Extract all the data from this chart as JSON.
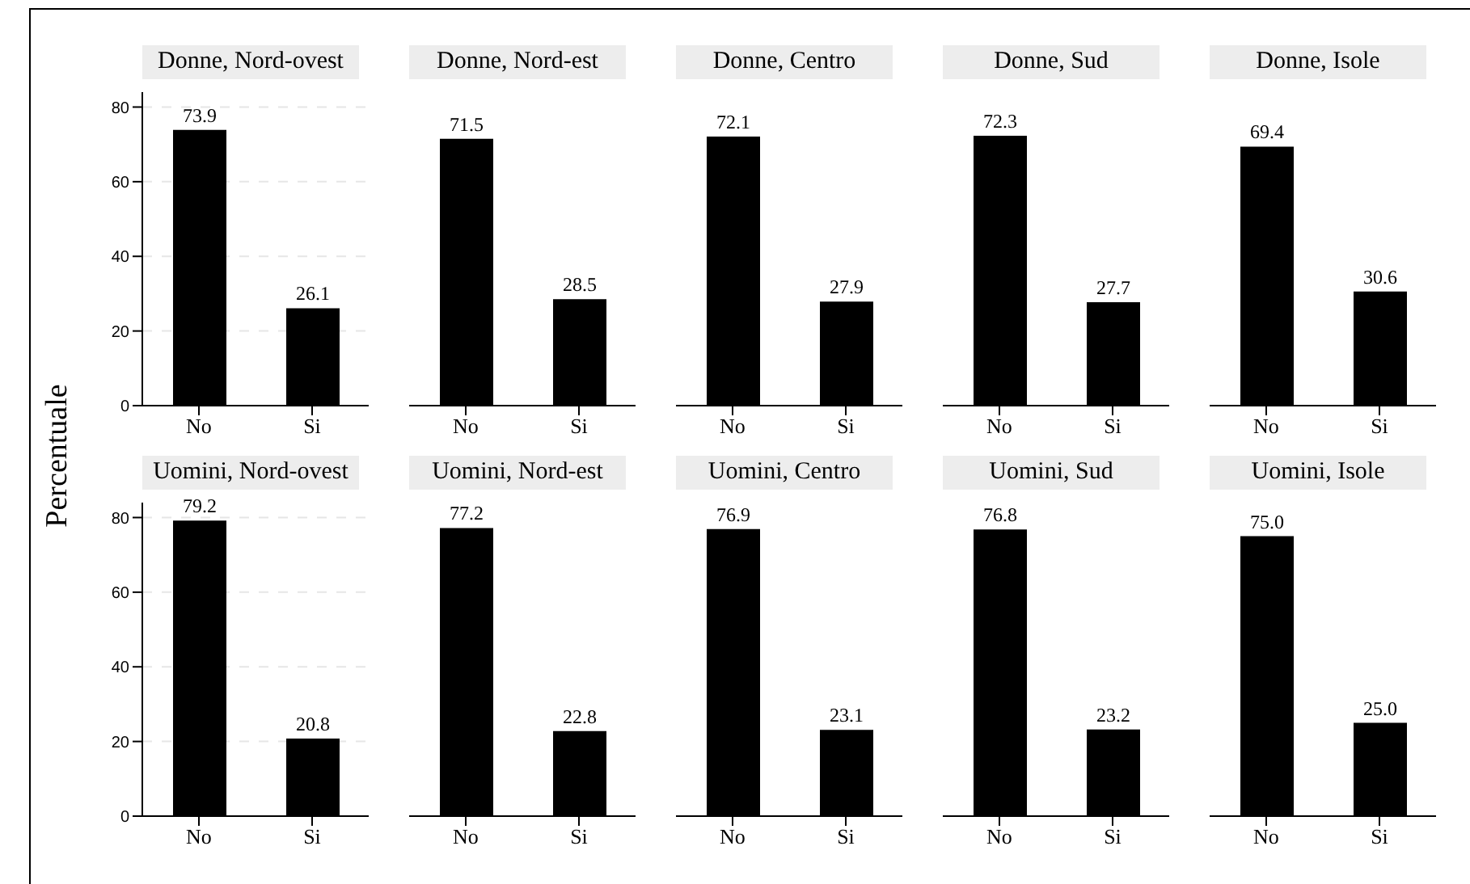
{
  "chart_data": [
    {
      "type": "bar",
      "title": "Donne, Nord-ovest",
      "ylabel": "Percentuale",
      "categories": [
        "No",
        "Si"
      ],
      "values": [
        73.9,
        26.1
      ],
      "color": "#000000",
      "value_labels": [
        "73.9",
        "26.1"
      ],
      "ylim": [
        0,
        84
      ],
      "yticks": [
        0,
        20,
        40,
        60,
        80
      ],
      "grid": "y"
    },
    {
      "type": "bar",
      "title": "Donne, Nord-est",
      "categories": [
        "No",
        "Si"
      ],
      "values": [
        71.5,
        28.5
      ],
      "color": "#000000",
      "value_labels": [
        "71.5",
        "28.5"
      ],
      "grid": "y",
      "tick_labels": "x"
    },
    {
      "type": "bar",
      "title": "Donne, Centro",
      "categories": [
        "No",
        "Si"
      ],
      "values": [
        72.1,
        27.9
      ],
      "color": "#000000",
      "value_labels": [
        "72.1",
        "27.9"
      ],
      "grid": "y",
      "tick_labels": "x"
    },
    {
      "type": "bar",
      "title": "Donne, Sud",
      "categories": [
        "No",
        "Si"
      ],
      "values": [
        72.3,
        27.7
      ],
      "color": "#000000",
      "value_labels": [
        "72.3",
        "27.7"
      ],
      "grid": "y",
      "tick_labels": "x"
    },
    {
      "type": "bar",
      "title": "Donne, Isole",
      "categories": [
        "No",
        "Si"
      ],
      "values": [
        69.4,
        30.6
      ],
      "color": "#000000",
      "value_labels": [
        "69.4",
        "30.6"
      ],
      "grid": "y",
      "tick_labels": "x"
    },
    {
      "type": "bar",
      "title": "Uomini, Nord-ovest",
      "categories": [
        "No",
        "Si"
      ],
      "values": [
        79.2,
        20.8
      ],
      "color": "#000000",
      "value_labels": [
        "79.2",
        "20.8"
      ],
      "ylim": [
        0,
        84
      ],
      "yticks": [
        0,
        20,
        40,
        60,
        80
      ],
      "grid": "y"
    },
    {
      "type": "bar",
      "title": "Uomini, Nord-est",
      "categories": [
        "No",
        "Si"
      ],
      "values": [
        77.2,
        22.8
      ],
      "color": "#000000",
      "value_labels": [
        "77.2",
        "22.8"
      ],
      "grid": "y",
      "tick_labels": "x"
    },
    {
      "type": "bar",
      "title": "Uomini, Centro",
      "categories": [
        "No",
        "Si"
      ],
      "values": [
        76.9,
        23.1
      ],
      "color": "#000000",
      "value_labels": [
        "76.9",
        "23.1"
      ],
      "grid": "y",
      "tick_labels": "x"
    },
    {
      "type": "bar",
      "title": "Uomini, Sud",
      "categories": [
        "No",
        "Si"
      ],
      "values": [
        76.8,
        23.2
      ],
      "color": "#000000",
      "value_labels": [
        "76.8",
        "23.2"
      ],
      "grid": "y",
      "tick_labels": "x"
    },
    {
      "type": "bar",
      "title": "Uomini, Isole",
      "categories": [
        "No",
        "Si"
      ],
      "values": [
        75.0,
        25.0
      ],
      "color": "#000000",
      "value_labels": [
        "75.0",
        "25.0"
      ],
      "grid": "y",
      "tick_labels": "x"
    }
  ]
}
